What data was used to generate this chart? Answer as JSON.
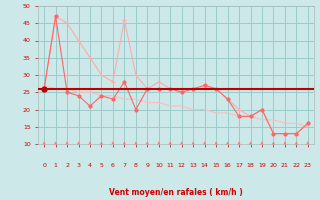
{
  "x": [
    0,
    1,
    2,
    3,
    4,
    5,
    6,
    7,
    8,
    9,
    10,
    11,
    12,
    13,
    14,
    15,
    16,
    17,
    18,
    19,
    20,
    21,
    22,
    23
  ],
  "line_moyen_y": [
    26,
    47,
    25,
    24,
    21,
    24,
    23,
    28,
    20,
    26,
    26,
    26,
    25,
    26,
    27,
    26,
    23,
    18,
    18,
    20,
    13,
    13,
    13,
    16
  ],
  "line_rafales_y": [
    26,
    47,
    45,
    40,
    35,
    30,
    28,
    46,
    30,
    26,
    28,
    26,
    26,
    26,
    26,
    26,
    23,
    20,
    18,
    20,
    13,
    13,
    13,
    16
  ],
  "line_diag_y": [
    27,
    26,
    26,
    25,
    25,
    24,
    24,
    23,
    23,
    22,
    22,
    21,
    21,
    20,
    20,
    19,
    19,
    18,
    18,
    17,
    17,
    16,
    16,
    15
  ],
  "hline_y": 26,
  "xlim": [
    -0.5,
    23.5
  ],
  "ylim": [
    10,
    50
  ],
  "yticks": [
    10,
    15,
    20,
    25,
    30,
    35,
    40,
    45,
    50
  ],
  "xticks": [
    0,
    1,
    2,
    3,
    4,
    5,
    6,
    7,
    8,
    9,
    10,
    11,
    12,
    13,
    14,
    15,
    16,
    17,
    18,
    19,
    20,
    21,
    22,
    23
  ],
  "xlabel": "Vent moyen/en rafales ( km/h )",
  "bg_color": "#cce8e8",
  "grid_color": "#99cccc",
  "line_color_moyen": "#ff6666",
  "line_color_rafales": "#ffaaaa",
  "line_color_diag": "#ffbbbb",
  "hline_color": "#bb0000",
  "xlabel_color": "#cc0000",
  "tick_color": "#cc0000",
  "arrow_color": "#ff7777"
}
